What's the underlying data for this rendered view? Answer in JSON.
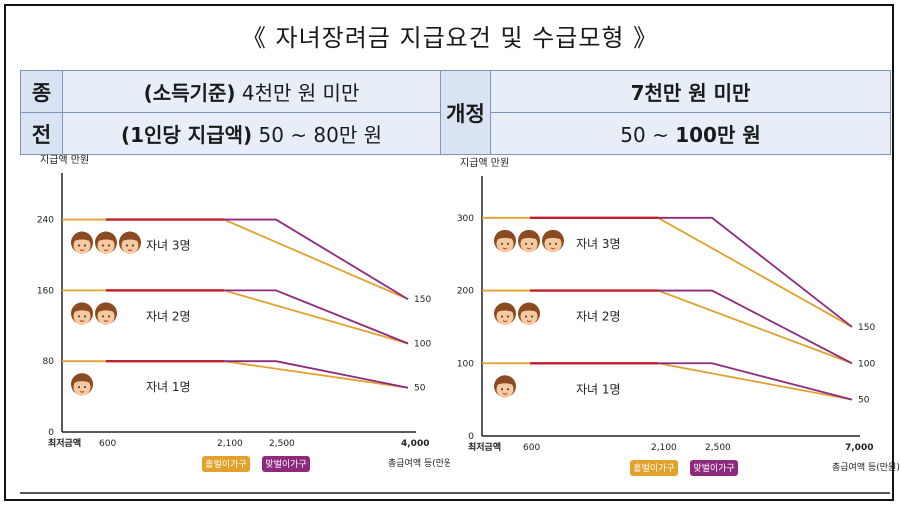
{
  "title": "《 자녀장려금 지급요건 및 수급모형 》",
  "table": {
    "before_label_1": "종",
    "before_label_2": "전",
    "before_income_prefix": "(소득기준)",
    "before_income": " 4천만 원 미만",
    "before_amount_prefix": "(1인당 지급액)",
    "before_amount": " 50 ~ 80만 원",
    "after_label": "개정",
    "after_income": "7천만 원 미만",
    "after_amount_prefix": "50 ~ ",
    "after_amount": "100만 원"
  },
  "colors": {
    "single_earner": "#e1a12b",
    "dual_earner": "#8e2a7e",
    "flat_red": "#c0202a"
  },
  "chart_data": [
    {
      "type": "line",
      "ylabel": "지급액 만원",
      "xlabel": "총급여액 등(만원)",
      "x_ticks": [
        "최저금액",
        "600",
        "2,100",
        "2,500",
        "4,000"
      ],
      "x_values": [
        0,
        600,
        2100,
        2500,
        4000
      ],
      "y_ticks": [
        "0",
        "80",
        "160",
        "240"
      ],
      "ylim": [
        0,
        270
      ],
      "right_ticks": [
        "150",
        "100",
        "50"
      ],
      "series_labels": [
        "자녀 3명",
        "자녀 2명",
        "자녀 1명"
      ],
      "series": [
        {
          "name": "홑벌이가구",
          "children": 3,
          "x": [
            0,
            600,
            2100,
            4000
          ],
          "y": [
            240,
            240,
            240,
            150
          ]
        },
        {
          "name": "맞벌이가구",
          "children": 3,
          "x": [
            600,
            2500,
            4000
          ],
          "y": [
            240,
            240,
            150
          ]
        },
        {
          "name": "홑벌이가구",
          "children": 2,
          "x": [
            0,
            600,
            2100,
            4000
          ],
          "y": [
            160,
            160,
            160,
            100
          ]
        },
        {
          "name": "맞벌이가구",
          "children": 2,
          "x": [
            600,
            2500,
            4000
          ],
          "y": [
            160,
            160,
            100
          ]
        },
        {
          "name": "홑벌이가구",
          "children": 1,
          "x": [
            0,
            600,
            2100,
            4000
          ],
          "y": [
            80,
            80,
            80,
            50
          ]
        },
        {
          "name": "맞벌이가구",
          "children": 1,
          "x": [
            600,
            2500,
            4000
          ],
          "y": [
            80,
            80,
            50
          ]
        }
      ],
      "legend": [
        "홑벌이가구",
        "맞벌이가구"
      ]
    },
    {
      "type": "line",
      "ylabel": "지급액 만원",
      "xlabel": "총급여액 등(만원)",
      "x_ticks": [
        "최저금액",
        "600",
        "2,100",
        "2,500",
        "7,000"
      ],
      "x_values": [
        0,
        600,
        2100,
        2500,
        7000
      ],
      "y_ticks": [
        "0",
        "100",
        "200",
        "300"
      ],
      "ylim": [
        0,
        330
      ],
      "right_ticks": [
        "150",
        "100",
        "50"
      ],
      "series_labels": [
        "자녀 3명",
        "자녀 2명",
        "자녀 1명"
      ],
      "series": [
        {
          "name": "홑벌이가구",
          "children": 3,
          "x": [
            0,
            600,
            2100,
            7000
          ],
          "y": [
            300,
            300,
            300,
            150
          ]
        },
        {
          "name": "맞벌이가구",
          "children": 3,
          "x": [
            600,
            2500,
            7000
          ],
          "y": [
            300,
            300,
            150
          ]
        },
        {
          "name": "홑벌이가구",
          "children": 2,
          "x": [
            0,
            600,
            2100,
            7000
          ],
          "y": [
            200,
            200,
            200,
            100
          ]
        },
        {
          "name": "맞벌이가구",
          "children": 2,
          "x": [
            600,
            2500,
            7000
          ],
          "y": [
            200,
            200,
            100
          ]
        },
        {
          "name": "홑벌이가구",
          "children": 1,
          "x": [
            0,
            600,
            2100,
            7000
          ],
          "y": [
            100,
            100,
            100,
            50
          ]
        },
        {
          "name": "맞벌이가구",
          "children": 1,
          "x": [
            600,
            2500,
            7000
          ],
          "y": [
            100,
            100,
            50
          ]
        }
      ],
      "legend": [
        "홑벌이가구",
        "맞벌이가구"
      ]
    }
  ]
}
